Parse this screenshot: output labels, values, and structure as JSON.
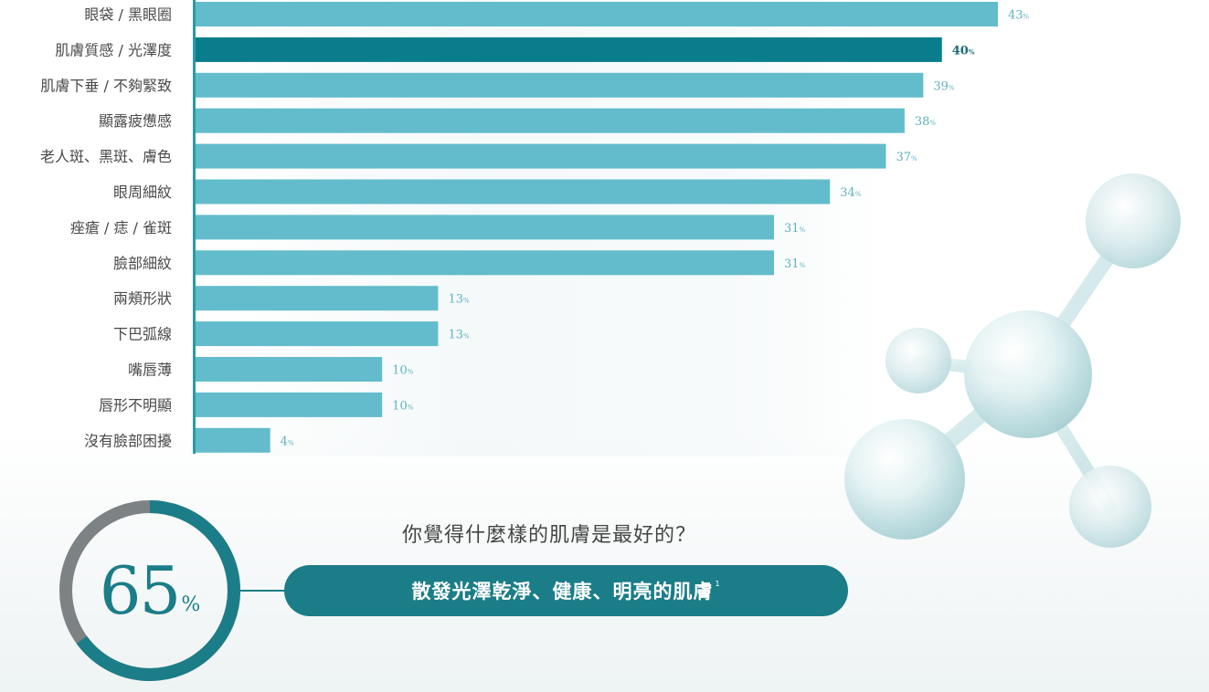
{
  "chart_data": {
    "type": "bar",
    "orientation": "horizontal",
    "categories": [
      "眼袋 / 黑眼圈",
      "肌膚質感 / 光澤度",
      "肌膚下垂 / 不夠緊致",
      "顯露疲憊感",
      "老人斑、黑斑、膚色",
      "眼周細紋",
      "痤瘡 / 痣 / 雀斑",
      "臉部細紋",
      "兩頰形狀",
      "下巴弧線",
      "嘴唇薄",
      "唇形不明顯",
      "沒有臉部困擾"
    ],
    "values": [
      43,
      40,
      39,
      38,
      37,
      34,
      31,
      31,
      13,
      13,
      10,
      10,
      4
    ],
    "value_suffix": "%",
    "highlight_index": 1,
    "colors": {
      "bar": "#63bccb",
      "bar_highlight": "#0a7d8c",
      "axis": "#2a9aa8",
      "value_text": "#5fb2c2"
    }
  },
  "donut": {
    "value": 65,
    "suffix": "%",
    "colors": {
      "filled": "#1b7d87",
      "remaining": "#7d8285"
    }
  },
  "question": "你覺得什麼樣的肌膚是最好的？",
  "answer": {
    "text": "散發光澤乾淨、健康、明亮的肌膚",
    "footnote": "1"
  }
}
